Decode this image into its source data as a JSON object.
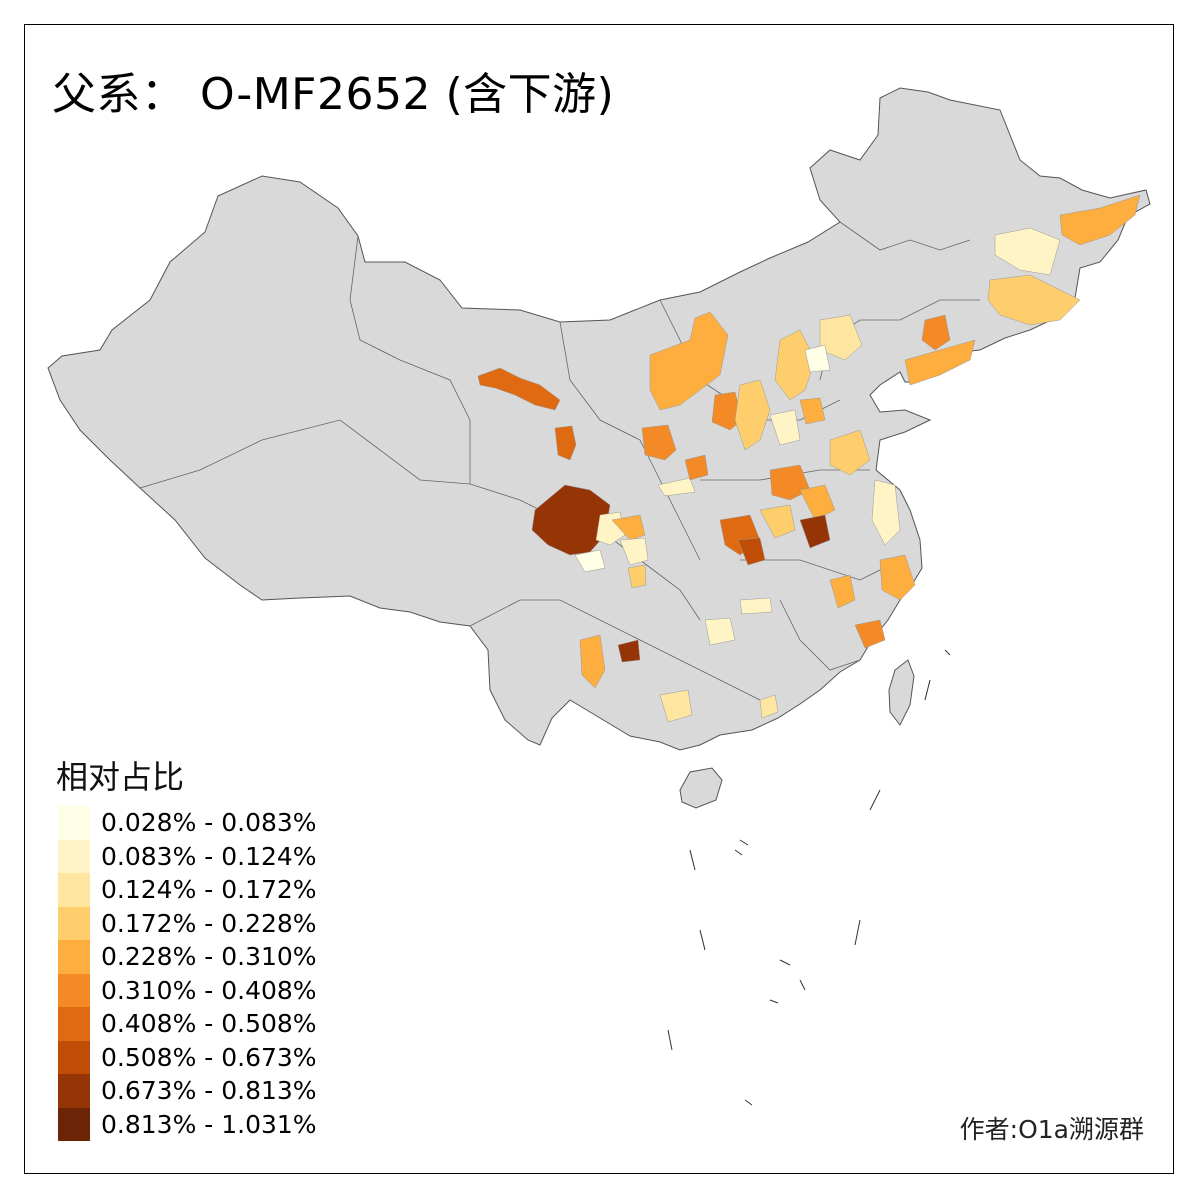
{
  "title": "父系： O-MF2652 (含下游)",
  "legend": {
    "title": "相对占比",
    "items": [
      {
        "label": "0.028% - 0.083%",
        "color": "#fffee6"
      },
      {
        "label": "0.083% - 0.124%",
        "color": "#fff4c6"
      },
      {
        "label": "0.124% - 0.172%",
        "color": "#fee6a0"
      },
      {
        "label": "0.172% - 0.228%",
        "color": "#fece6c"
      },
      {
        "label": "0.228% - 0.310%",
        "color": "#fdae3e"
      },
      {
        "label": "0.310% - 0.408%",
        "color": "#f38a25"
      },
      {
        "label": "0.408% - 0.508%",
        "color": "#e06a12"
      },
      {
        "label": "0.508% - 0.673%",
        "color": "#c04c06"
      },
      {
        "label": "0.673% - 0.813%",
        "color": "#953405"
      },
      {
        "label": "0.813% - 1.031%",
        "color": "#6b2406"
      }
    ]
  },
  "author": "作者:O1a溯源群",
  "colors": {
    "land": "#d9d9d9",
    "border": "#555555",
    "background": "#ffffff"
  }
}
